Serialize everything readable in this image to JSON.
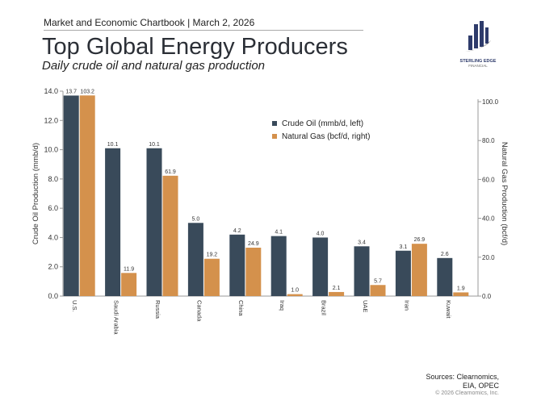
{
  "header": {
    "chartbook": "Market and Economic Chartbook | March 2, 2026",
    "title": "Top Global Energy Producers",
    "subtitle": "Daily crude oil and natural gas production"
  },
  "logo": {
    "name": "STERLING EDGE",
    "sub": "FINANCIAL"
  },
  "footer": {
    "sources_line1": "Sources: Clearnomics,",
    "sources_line2": "EIA, OPEC",
    "copyright": "© 2026 Clearnomics, Inc."
  },
  "colors": {
    "oil": "#394a5a",
    "gas": "#d4914c"
  },
  "chart_data": {
    "type": "bar",
    "categories": [
      "U.S.",
      "Saudi Arabia",
      "Russia",
      "Canada",
      "China",
      "Iraq",
      "Brazil",
      "UAE",
      "Iran",
      "Kuwait"
    ],
    "series": [
      {
        "name": "Crude Oil (mmb/d, left)",
        "axis": "left",
        "values": [
          13.7,
          10.1,
          10.1,
          5.0,
          4.2,
          4.1,
          4.0,
          3.4,
          3.1,
          2.6
        ]
      },
      {
        "name": "Natural Gas (bcf/d, right)",
        "axis": "right",
        "values": [
          103.2,
          11.9,
          61.9,
          19.2,
          24.9,
          1.0,
          2.1,
          5.7,
          26.9,
          1.9
        ]
      }
    ],
    "ylabel": "Crude Oil Production (mmb/d)",
    "y2label": "Natural Gas Production (bcf/d)",
    "ylim": [
      0,
      14
    ],
    "yticks": [
      0,
      2,
      4,
      6,
      8,
      10,
      12,
      14
    ],
    "y2lim": [
      0,
      105.4
    ],
    "y2ticks": [
      0,
      20,
      40,
      60,
      80,
      100
    ],
    "legend": "top-right",
    "grid": false
  }
}
